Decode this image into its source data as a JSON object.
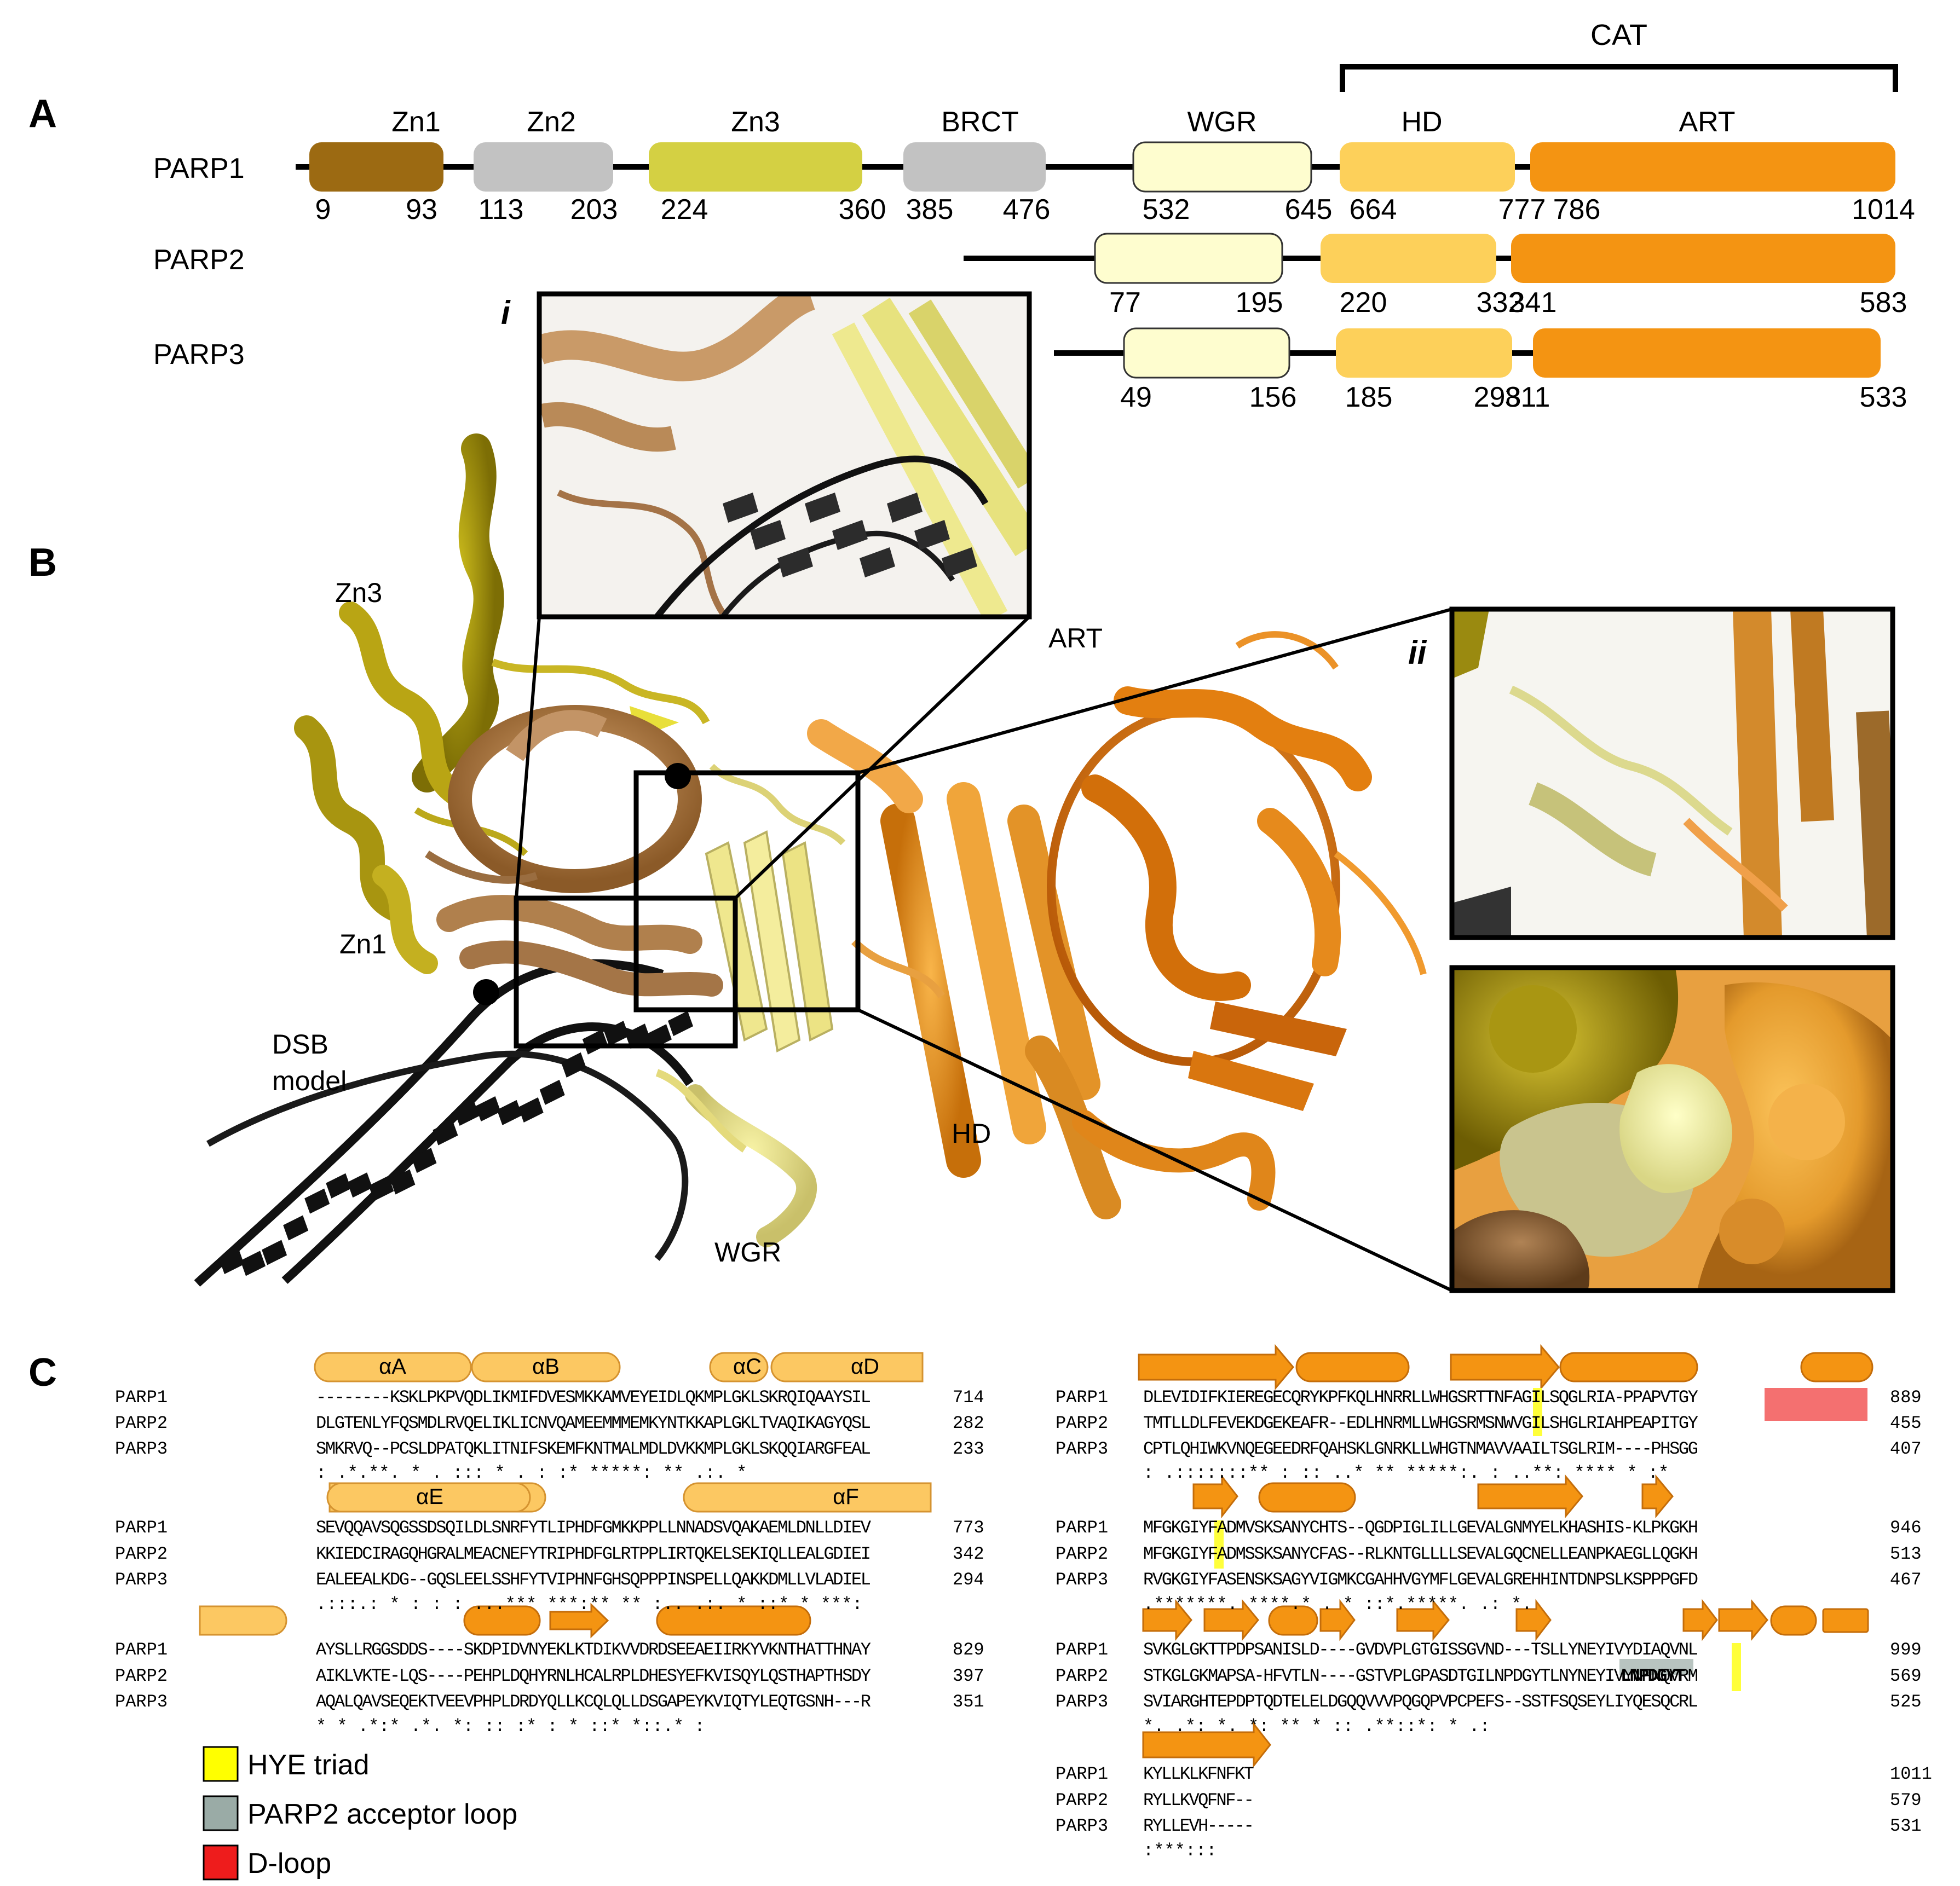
{
  "colors": {
    "zn1": "#9c6a12",
    "grey": "#c2c2c2",
    "zn3": "#d4d043",
    "wgr": "#fefdcf",
    "hd": "#fdd05a",
    "art": "#f49412",
    "hye": "#ffff00",
    "acceptor": "#9aaba6",
    "dloop": "#ee1c1c"
  },
  "panelA": {
    "label": "A",
    "cat_label": "CAT",
    "proteins": [
      {
        "name": "PARP1",
        "domains": [
          {
            "label": "Zn1",
            "start": "9",
            "end": "93",
            "color": "zn1"
          },
          {
            "label": "Zn2",
            "start": "113",
            "end": "203",
            "color": "grey"
          },
          {
            "label": "Zn3",
            "start": "224",
            "end": "360",
            "color": "zn3"
          },
          {
            "label": "BRCT",
            "start": "385",
            "end": "476",
            "color": "grey"
          },
          {
            "label": "WGR",
            "start": "532",
            "end": "645",
            "color": "wgr"
          },
          {
            "label": "HD",
            "start": "664",
            "end": "777",
            "color": "hd"
          },
          {
            "label": "ART",
            "start": "786",
            "end": "1014",
            "color": "art"
          }
        ]
      },
      {
        "name": "PARP2",
        "domains": [
          {
            "label": "",
            "start": "77",
            "end": "195",
            "color": "wgr"
          },
          {
            "label": "",
            "start": "220",
            "end": "332",
            "color": "hd"
          },
          {
            "label": "",
            "start": "341",
            "end": "583",
            "color": "art"
          }
        ]
      },
      {
        "name": "PARP3",
        "domains": [
          {
            "label": "",
            "start": "49",
            "end": "156",
            "color": "wgr"
          },
          {
            "label": "",
            "start": "185",
            "end": "298",
            "color": "hd"
          },
          {
            "label": "",
            "start": "311",
            "end": "533",
            "color": "art"
          }
        ]
      }
    ]
  },
  "panelB": {
    "label": "B",
    "labels": {
      "zn3": "Zn3",
      "zn1": "Zn1",
      "dsb": [
        "DSB",
        "model"
      ],
      "wgr": "WGR",
      "hd": "HD",
      "art": "ART",
      "inset_i": "i",
      "inset_ii": "ii"
    }
  },
  "panelC": {
    "label": "C",
    "left_blocks": [
      {
        "helices": [
          "αA",
          "αB",
          "αC",
          "αD"
        ],
        "rows": [
          {
            "name": "PARP1",
            "seq": "--------KSKLPKPVQDLIKMIFDVESMKKAMVEYEIDLQKMPLGKLSKRQIQAAYSIL",
            "num": "714"
          },
          {
            "name": "PARP2",
            "seq": "DLGTENLYFQSMDLRVQELIKLICNVQAMEEMMMEMKYNTKKAPLGKLTVAQIKAGYQSL",
            "num": "282"
          },
          {
            "name": "PARP3",
            "seq": "SMKRVQ--PCSLDPATQKLITNIFSKEMFKNTMALMDLDVKKMPLGKLSKQQIARGFEAL",
            "num": "233"
          }
        ],
        "cons": "        :  .*.**. *  . ::: *     . : :* *****: **   .:. *"
      },
      {
        "helices": [
          "αE",
          "αF"
        ],
        "rows": [
          {
            "name": "PARP1",
            "seq": "SEVQQAVSQGSSDSQILDLSNRFYTLIPHDFGMKKPPLLNNADSVQAKAEMLDNLLDIEV",
            "num": "773"
          },
          {
            "name": "PARP2",
            "seq": "KKIEDCIRAGQHGRALMEACNEFYTRIPHDFGLRTPPLIRTQKELSEKIQLLEALGDIEI",
            "num": "342"
          },
          {
            "name": "PARP3",
            "seq": "EALEEALKDG--GQSLEELSSHFYTVIPHNFGHSQPPPINSPELLQAKKDMLLVLADIEL",
            "num": "294"
          }
        ],
        "cons": " .:::.:   *    :  : : ...*** ***:**    ** :.. .:. * ::*  * ***:"
      },
      {
        "helices": [],
        "rows": [
          {
            "name": "PARP1",
            "seq": "AYSLLRGGSDDS----SKDPIDVNYEKLKTDIKVVDRDSEEAEIIRKYVKNTHATTHNAY",
            "num": "829"
          },
          {
            "name": "PARP2",
            "seq": "AIKLVKTE-LQS----PEHPLDQHYRNLHCALRPLDHESYEFKVISQYLQSTHAPTHSDY",
            "num": "397"
          },
          {
            "name": "PARP3",
            "seq": "AQALQAVSEQEKTVEEVPHPLDRDYQLLKCQLQLLDSGAPEYKVIQTYLEQTGSNH---R",
            "num": "351"
          }
        ],
        "cons": " *  *               .*:* .*. *:   :: :*  : * ::*  *::.* :"
      },
      {
        "helices": [],
        "rows": [],
        "cons": ""
      }
    ],
    "right_blocks": [
      {
        "rows": [
          {
            "name": "PARP1",
            "seq": "DLEVIDIFKIEREGECQRYKPFKQLHNRRLLWHGSRTTNFAGILSQGLRIA-PPAPVTGY",
            "num": "889"
          },
          {
            "name": "PARP2",
            "seq": "TMTLLDLFEVEKDGEKEAFR--EDLHNRMLLWHGSRMSNWVGILSHGLRIAHPEAPITGY",
            "num": "455"
          },
          {
            "name": "PARP3",
            "seq": "CPTLQHIWKVNQEGEEDRFQAHSKLGNRKLLWHGTNMAVVAAILTSGLRIM----PHSGG",
            "num": "407"
          }
        ],
        "cons": "  :  .:::::::** : ::  ..* ** *****:. :   ..**: ****    * :*"
      },
      {
        "rows": [
          {
            "name": "PARP1",
            "seq": "MFGKGIYFADMVSKSANYCHTS--QGDPIGLILLGEVALGNMYELKHASHIS-KLPKGKH",
            "num": "946"
          },
          {
            "name": "PARP2",
            "seq": "MFGKGIYFADMSSKSANYCFAS--RLKNTGLLLLSEVALGQCNELLEANPKAEGLLQGKH",
            "num": "513"
          },
          {
            "name": "PARP3",
            "seq": "RVGKGIYFASENSKSAGYVIGMKCGAHHVGYMFLGEVALGREHHINTDNPSLKSPPPGFD",
            "num": "467"
          }
        ],
        "cons": "  .*******.  ****.*        .  * ::*.*****.  .:         *."
      },
      {
        "rows": [
          {
            "name": "PARP1",
            "seq": "SVKGLGKTTPDPSANISLD----GVDVPLGTGISSGVND---TSLLYNEYIVYDIAQVNL",
            "num": "999"
          },
          {
            "name": "PARP2",
            "seq": "STKGLGKMAPSA-HFVTLN----GSTVPLGPASDTGILNPDGYTLNYNEYIVYNPNQVRM",
            "num": "569"
          },
          {
            "name": "PARP3",
            "seq": "SVIARGHTEPDPTQDTELELDGQQVVVPQGQPVPCPEFS--SSTFSQSEYLIYQESQCRL",
            "num": "525"
          }
        ],
        "cons": " *. .*: *.              *:        ** *       ::  .**::*:   * .:"
      },
      {
        "rows": [
          {
            "name": "PARP1",
            "seq": "KYLLKLKFNFKT",
            "num": "1011"
          },
          {
            "name": "PARP2",
            "seq": "RYLLKVQFNF--",
            "num": "579"
          },
          {
            "name": "PARP3",
            "seq": "RYLLEVH-----",
            "num": "531"
          }
        ],
        "cons": " :***:::"
      }
    ],
    "legend": [
      {
        "label": "HYE triad",
        "color": "hye"
      },
      {
        "label": "PARP2 acceptor loop",
        "color": "acceptor"
      },
      {
        "label": "D-loop",
        "color": "dloop"
      }
    ]
  }
}
